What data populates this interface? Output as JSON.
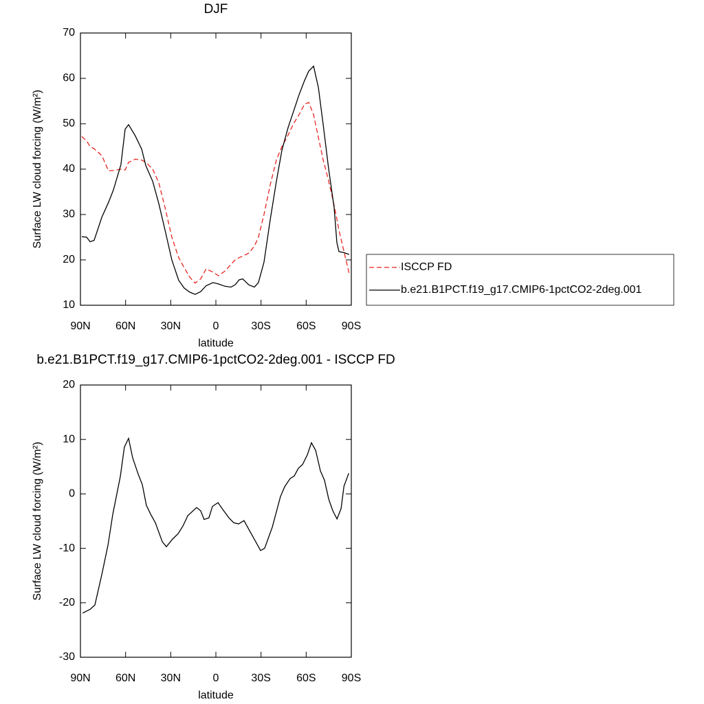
{
  "chart_data": [
    {
      "type": "line",
      "title": "DJF",
      "xlabel": "latitude",
      "ylabel": "Surface LW cloud forcing (W/m²)",
      "x": [
        89.1,
        85.9,
        83.6,
        80.9,
        75.8,
        71.3,
        68.1,
        63.1,
        60.3,
        58,
        53.5,
        49.3,
        46.6,
        42,
        37.9,
        33.4,
        29.3,
        24.7,
        21.1,
        17.4,
        13.8,
        10.1,
        6.5,
        1.9,
        -1.7,
        -5.9,
        -10,
        -12.8,
        -15.5,
        -17.8,
        -21.9,
        -25.6,
        -28.3,
        -32,
        -36.1,
        -40.2,
        -43.9,
        -48,
        -51.6,
        -55.3,
        -58.9,
        -61.7,
        -64.9,
        -68.1,
        -71.3,
        -74.9,
        -78.6,
        -80.4,
        -81.8,
        -85,
        -88.6
      ],
      "series": [
        {
          "name": "ISCCP FD",
          "color": "#e8231f",
          "dash": "dashed",
          "values": [
            47.2,
            46.2,
            45,
            44.5,
            43,
            39.6,
            39.7,
            40,
            39.8,
            41.5,
            42.2,
            42,
            41.5,
            40,
            37,
            31,
            25,
            20.5,
            18.3,
            16.2,
            14.9,
            15.8,
            18,
            17.3,
            16.5,
            17.5,
            19,
            20,
            20.5,
            20.8,
            21.5,
            23,
            25,
            30,
            36.5,
            42,
            45,
            47.5,
            50,
            52,
            54.3,
            54.7,
            52,
            47,
            42,
            37.5,
            32,
            29,
            26.5,
            22,
            17
          ]
        },
        {
          "name": "b.e21.B1PCT.f19_g17.CMIP6-1pctCO2-2deg.001",
          "color": "#000000",
          "dash": "solid",
          "values": [
            25.1,
            25,
            24,
            24.3,
            29.4,
            32.7,
            35.4,
            41,
            48.8,
            49.8,
            47.3,
            44.4,
            40.8,
            37.3,
            32.4,
            26,
            20,
            15.5,
            13.8,
            12.9,
            12.4,
            13,
            14.3,
            15,
            14.7,
            14.2,
            14,
            14.5,
            15.6,
            15.8,
            14.5,
            14,
            15,
            19.5,
            28.8,
            37.3,
            44.2,
            49.2,
            52.7,
            56.4,
            59.5,
            61.6,
            62.7,
            58,
            49.8,
            40.2,
            31.5,
            23.8,
            21.8,
            21.6,
            21.2
          ]
        }
      ],
      "xlim": [
        90,
        -90
      ],
      "xticks": [
        {
          "value": 90,
          "label": "90N"
        },
        {
          "value": 60,
          "label": "60N"
        },
        {
          "value": 30,
          "label": "30N"
        },
        0,
        {
          "value": -30,
          "label": "30S"
        },
        {
          "value": -60,
          "label": "60S"
        },
        {
          "value": -90,
          "label": "90S"
        }
      ],
      "ylim": [
        10,
        70
      ],
      "yticks": [
        10,
        20,
        30,
        40,
        50,
        60,
        70
      ],
      "legend": "right"
    },
    {
      "type": "line",
      "title": "b.e21.B1PCT.f19_g17.CMIP6-1pctCO2-2deg.001 - ISCCP FD",
      "xlabel": "latitude",
      "ylabel": "Surface LW cloud forcing (W/m²)",
      "x": [
        88.6,
        83.6,
        80.4,
        75.8,
        71.7,
        68.5,
        63.5,
        60.8,
        58,
        55.3,
        51.6,
        48.9,
        46.2,
        43.4,
        40.2,
        35.6,
        32.9,
        28.8,
        25.1,
        21.9,
        18.7,
        12.8,
        10.1,
        7.8,
        4.6,
        2.3,
        -1.4,
        -5,
        -8.7,
        -11.9,
        -15.1,
        -18.7,
        -21.9,
        -26.5,
        -29.7,
        -32.4,
        -37.5,
        -42.9,
        -45.7,
        -49.3,
        -52.1,
        -54.8,
        -57.6,
        -60.8,
        -63.5,
        -66.3,
        -69.5,
        -72.2,
        -75,
        -77.7,
        -80.5,
        -83.2,
        -85.1,
        -88.3
      ],
      "values": [
        -21.9,
        -21.2,
        -20.4,
        -14.8,
        -9.4,
        -3.7,
        3.2,
        8.6,
        10.2,
        6.6,
        3.6,
        1.7,
        -2.1,
        -3.7,
        -5.3,
        -8.8,
        -9.7,
        -8.3,
        -7.3,
        -5.9,
        -4,
        -2.5,
        -3.1,
        -4.7,
        -4.4,
        -2.3,
        -1.6,
        -3,
        -4.4,
        -5.3,
        -5.5,
        -4.9,
        -6.5,
        -8.8,
        -10.4,
        -10,
        -6.1,
        -0.5,
        1.3,
        2.8,
        3.3,
        4.7,
        5.4,
        7.2,
        9.4,
        8,
        4.2,
        2.5,
        -1,
        -3.1,
        -4.6,
        -2.7,
        1.4,
        3.8
      ],
      "color": "#000000",
      "xlim": [
        90,
        -90
      ],
      "xticks": [
        {
          "value": 90,
          "label": "90N"
        },
        {
          "value": 60,
          "label": "60N"
        },
        {
          "value": 30,
          "label": "30N"
        },
        0,
        {
          "value": -30,
          "label": "30S"
        },
        {
          "value": -60,
          "label": "60S"
        },
        {
          "value": -90,
          "label": "90S"
        }
      ],
      "ylim": [
        -30,
        20
      ],
      "yticks": [
        -30,
        -20,
        -10,
        0,
        10,
        20
      ]
    }
  ]
}
